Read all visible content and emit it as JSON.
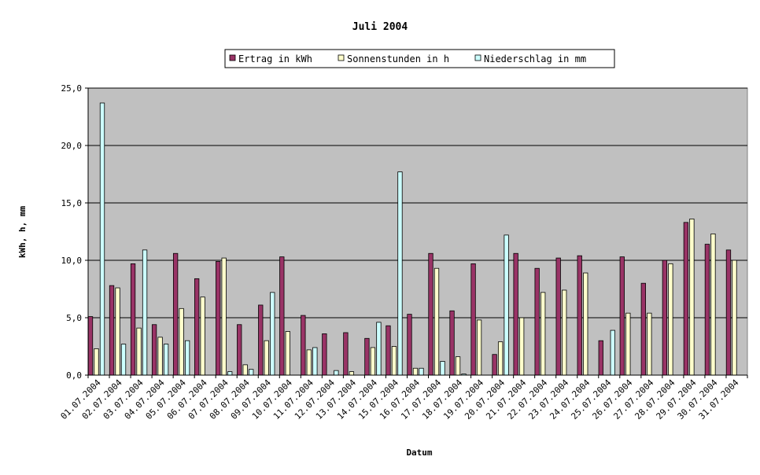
{
  "chart_data": {
    "type": "bar",
    "title": "Juli 2004",
    "xlabel": "Datum",
    "ylabel": "kWh, h, mm",
    "ylim": [
      0,
      25
    ],
    "yticks": [
      "0,0",
      "5,0",
      "10,0",
      "15,0",
      "20,0",
      "25,0"
    ],
    "grid": true,
    "legend": "top",
    "categories": [
      "01.07.2004",
      "02.07.2004",
      "03.07.2004",
      "04.07.2004",
      "05.07.2004",
      "06.07.2004",
      "07.07.2004",
      "08.07.2004",
      "09.07.2004",
      "10.07.2004",
      "11.07.2004",
      "12.07.2004",
      "13.07.2004",
      "14.07.2004",
      "15.07.2004",
      "16.07.2004",
      "17.07.2004",
      "18.07.2004",
      "19.07.2004",
      "20.07.2004",
      "21.07.2004",
      "22.07.2004",
      "23.07.2004",
      "24.07.2004",
      "25.07.2004",
      "26.07.2004",
      "27.07.2004",
      "28.07.2004",
      "29.07.2004",
      "30.07.2004",
      "31.07.2004"
    ],
    "series": [
      {
        "name": "Ertrag in kWh",
        "color": "#993366",
        "values": [
          5.1,
          7.8,
          9.7,
          4.4,
          10.6,
          8.4,
          9.9,
          4.4,
          6.1,
          10.3,
          5.2,
          3.6,
          3.7,
          3.2,
          4.3,
          5.3,
          10.6,
          5.6,
          9.7,
          1.8,
          10.6,
          9.3,
          10.2,
          10.4,
          3.0,
          10.3,
          8.0,
          10.0,
          13.3,
          11.4,
          10.9
        ]
      },
      {
        "name": "Sonnenstunden in h",
        "color": "#ffffcc",
        "values": [
          2.3,
          7.6,
          4.1,
          3.3,
          5.8,
          6.8,
          10.2,
          0.9,
          3.0,
          3.8,
          2.2,
          0.0,
          0.3,
          2.4,
          2.5,
          0.6,
          9.3,
          1.6,
          4.8,
          2.9,
          5.0,
          7.2,
          7.4,
          8.9,
          0.0,
          5.4,
          5.4,
          9.7,
          13.6,
          12.3,
          10.0
        ]
      },
      {
        "name": "Niederschlag in mm",
        "color": "#ccffff",
        "values": [
          23.7,
          2.7,
          10.9,
          2.7,
          3.0,
          0.0,
          0.3,
          0.5,
          7.2,
          0.0,
          2.4,
          0.4,
          0.0,
          4.6,
          17.7,
          0.6,
          1.2,
          0.1,
          0.0,
          12.2,
          0.0,
          0.0,
          0.0,
          0.0,
          3.9,
          0.0,
          0.0,
          0.0,
          0.0,
          0.0,
          0.0
        ]
      }
    ]
  },
  "colors": {
    "plot_bg": "#c0c0c0",
    "gridline": "#000000",
    "bar_outline": "#000000"
  }
}
